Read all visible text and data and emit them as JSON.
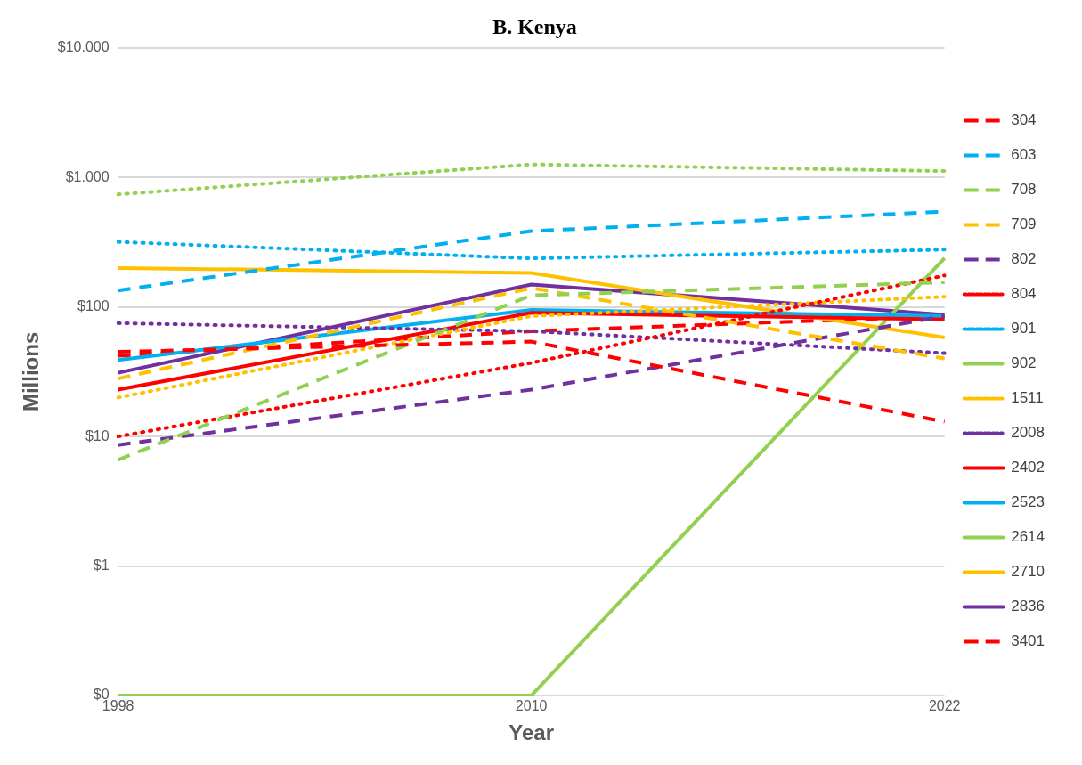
{
  "chart_data": {
    "type": "line",
    "title": "B. Kenya",
    "xlabel": "Year",
    "ylabel": "Millions",
    "categories": [
      "1998",
      "2010",
      "2022"
    ],
    "log": "y",
    "ylim": [
      0.1,
      10000
    ],
    "yticks": [
      {
        "value": 0.1,
        "label": "$0"
      },
      {
        "value": 1,
        "label": "$1"
      },
      {
        "value": 10,
        "label": "$10"
      },
      {
        "value": 100,
        "label": "$100"
      },
      {
        "value": 1000,
        "label": "$1.000"
      },
      {
        "value": 10000,
        "label": "$10.000"
      }
    ],
    "grid": "y",
    "legend": "right",
    "marker": "none",
    "series": [
      {
        "name": "304",
        "color": "#ff0000",
        "line_style": "dashed",
        "values": [
          45,
          54,
          13
        ]
      },
      {
        "name": "603",
        "color": "#00b0f0",
        "line_style": "dashed",
        "values": [
          134,
          385,
          545
        ]
      },
      {
        "name": "708",
        "color": "#92d050",
        "line_style": "dashed",
        "values": [
          6.6,
          123,
          155
        ]
      },
      {
        "name": "709",
        "color": "#ffc000",
        "line_style": "dashed",
        "values": [
          28,
          140,
          40
        ]
      },
      {
        "name": "802",
        "color": "#7030a0",
        "line_style": "dashed",
        "values": [
          8.6,
          23,
          85
        ]
      },
      {
        "name": "804",
        "color": "#ff0000",
        "line_style": "dotted",
        "values": [
          10,
          37,
          175
        ]
      },
      {
        "name": "901",
        "color": "#00b0f0",
        "line_style": "dotted",
        "values": [
          318,
          237,
          277
        ]
      },
      {
        "name": "902",
        "color": "#92d050",
        "line_style": "dotted",
        "values": [
          740,
          1260,
          1120
        ]
      },
      {
        "name": "1511",
        "color": "#ffc000",
        "line_style": "dotted",
        "values": [
          20,
          85,
          120
        ]
      },
      {
        "name": "2008",
        "color": "#7030a0",
        "line_style": "dotted",
        "values": [
          75,
          65,
          44
        ]
      },
      {
        "name": "2402",
        "color": "#ff0000",
        "line_style": "solid",
        "values": [
          23,
          90,
          80
        ]
      },
      {
        "name": "2523",
        "color": "#00b0f0",
        "line_style": "solid",
        "values": [
          39,
          95,
          85
        ]
      },
      {
        "name": "2614",
        "color": "#92d050",
        "line_style": "solid",
        "values": [
          0.1,
          0.1,
          238
        ]
      },
      {
        "name": "2710",
        "color": "#ffc000",
        "line_style": "solid",
        "values": [
          200,
          183,
          58
        ]
      },
      {
        "name": "2836",
        "color": "#7030a0",
        "line_style": "solid",
        "values": [
          31,
          149,
          87
        ]
      },
      {
        "name": "3401",
        "color": "#ff0000",
        "line_style": "dashed",
        "values": [
          42,
          65,
          85
        ]
      }
    ]
  }
}
